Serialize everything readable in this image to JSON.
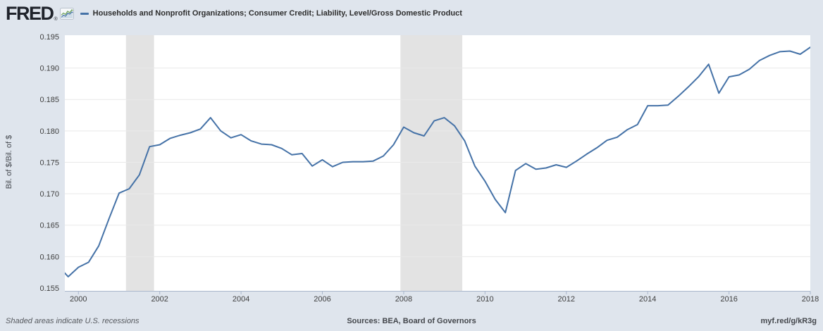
{
  "header": {
    "logo_text": "FRED",
    "logo_registered": "®",
    "legend_label": "Households and Nonprofit Organizations; Consumer Credit; Liability, Level/Gross Domestic Product"
  },
  "footer": {
    "recession_note": "Shaded areas indicate U.S. recessions",
    "sources": "Sources: BEA, Board of Governors",
    "short_url": "myf.red/g/kR3g"
  },
  "colors": {
    "page_background": "#dfe5ed",
    "plot_background": "#ffffff",
    "line": "#4572a7",
    "recession_band": "#e3e3e3",
    "gridline": "#e9e9e9",
    "axis": "#aab7cc",
    "tick_text": "#3f3f3f",
    "logo": "#1f232b",
    "icon_green": "#6a9f54"
  },
  "chart_data": {
    "type": "line",
    "title": "Households and Nonprofit Organizations; Consumer Credit; Liability, Level/Gross Domestic Product",
    "xlabel": "",
    "ylabel": "Bil. of $/Bil. of $",
    "frequency": "quarterly",
    "grid": true,
    "legend_position": "top",
    "x_ticks": [
      2000,
      2002,
      2004,
      2006,
      2008,
      2010,
      2012,
      2014,
      2016,
      2018
    ],
    "y_ticks": [
      0.155,
      0.16,
      0.165,
      0.17,
      0.175,
      0.18,
      0.185,
      0.19,
      0.195
    ],
    "y_tick_decimals": 3,
    "xlim": [
      1999.666,
      2018.0
    ],
    "ylim": [
      0.15455,
      0.19522
    ],
    "x_start": 1999.5,
    "x_step": 0.25,
    "values": [
      0.1585,
      0.1568,
      0.1583,
      0.1591,
      0.1617,
      0.166,
      0.1701,
      0.1708,
      0.173,
      0.1775,
      0.1778,
      0.1788,
      0.1793,
      0.1797,
      0.1803,
      0.1821,
      0.18,
      0.1789,
      0.1794,
      0.1784,
      0.1779,
      0.1778,
      0.1772,
      0.1762,
      0.1764,
      0.1744,
      0.1754,
      0.1743,
      0.175,
      0.1751,
      0.1751,
      0.1752,
      0.176,
      0.1778,
      0.1806,
      0.1797,
      0.1792,
      0.1816,
      0.1821,
      0.1808,
      0.1784,
      0.1744,
      0.172,
      0.1691,
      0.167,
      0.1737,
      0.1748,
      0.1739,
      0.1741,
      0.1746,
      0.1742,
      0.1752,
      0.1763,
      0.1773,
      0.1785,
      0.179,
      0.1802,
      0.181,
      0.184,
      0.184,
      0.1841,
      0.1855,
      0.187,
      0.1886,
      0.1906,
      0.186,
      0.1886,
      0.1889,
      0.1898,
      0.1912,
      0.192,
      0.1926,
      0.1927,
      0.1922,
      0.1933
    ],
    "recessions": [
      [
        2001.17,
        2001.86
      ],
      [
        2007.92,
        2009.44
      ]
    ]
  }
}
